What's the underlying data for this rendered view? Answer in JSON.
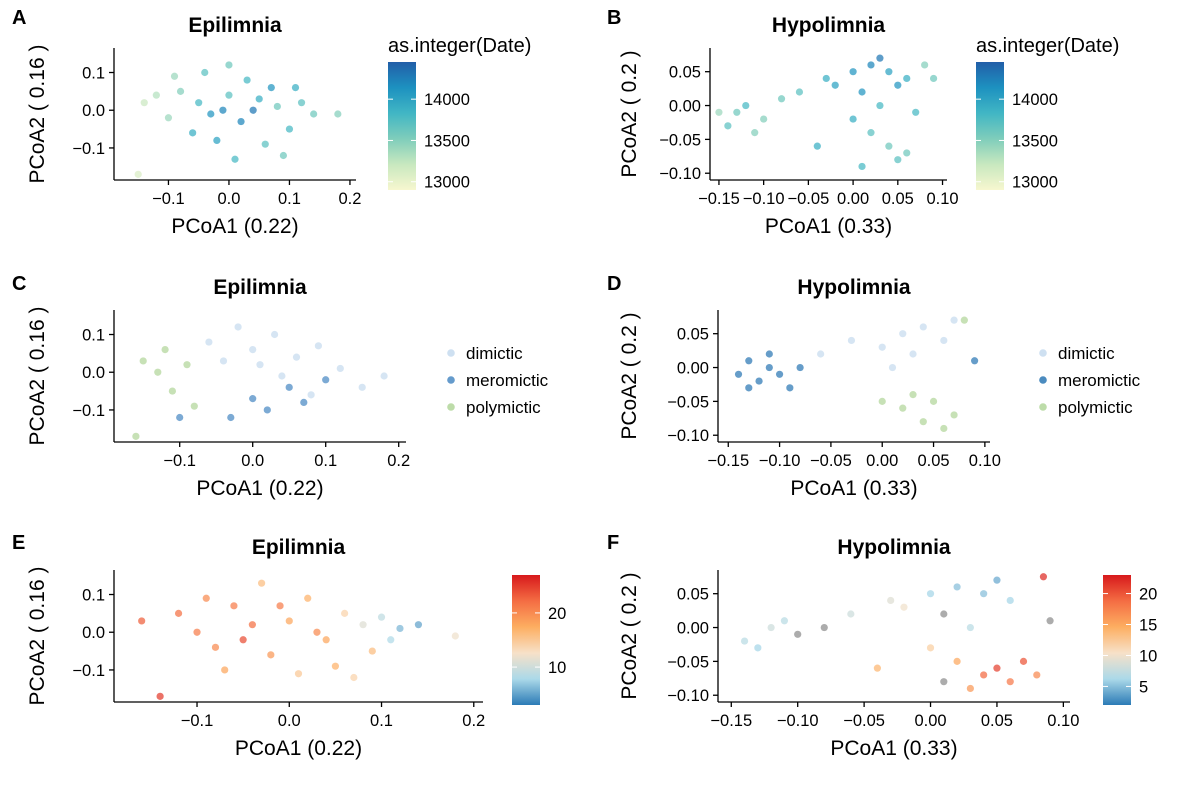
{
  "chart_data": [
    {
      "type": "scatter",
      "panel": "A",
      "title": "Epilimnia",
      "xlabel": "PCoA1 (0.22)",
      "ylabel": "PCoA2 ( 0.16 )",
      "xlim": [
        -0.19,
        0.21
      ],
      "ylim": [
        -0.185,
        0.165
      ],
      "xticks": [
        -0.1,
        0.0,
        0.1,
        0.2
      ],
      "xtick_labels": [
        "−0.1",
        "0.0",
        "0.1",
        "0.2"
      ],
      "yticks": [
        -0.1,
        0.0,
        0.1
      ],
      "ytick_labels": [
        "−0.1",
        "0.0",
        "0.1"
      ],
      "color_by": "continuous",
      "legend": {
        "type": "colorbar",
        "title": "as.integer(Date)",
        "ticks": [
          13000,
          13500,
          14000
        ],
        "tick_labels": [
          "13000",
          "13500",
          "14000"
        ],
        "range": [
          12900,
          14450
        ],
        "colors": [
          "#f7f7cf",
          "#c8e8bf",
          "#7fcdbb",
          "#41b6c4",
          "#1d91c0",
          "#225ea8"
        ]
      },
      "points": [
        [
          -0.05,
          0.02,
          13800
        ],
        [
          -0.03,
          -0.01,
          14100
        ],
        [
          0.0,
          0.04,
          13700
        ],
        [
          0.02,
          -0.03,
          14200
        ],
        [
          0.05,
          0.03,
          13900
        ],
        [
          0.08,
          0.01,
          13600
        ],
        [
          -0.08,
          0.05,
          13500
        ],
        [
          -0.1,
          -0.02,
          13400
        ],
        [
          0.1,
          -0.05,
          13800
        ],
        [
          0.12,
          0.02,
          13700
        ],
        [
          -0.12,
          0.04,
          13300
        ],
        [
          0.03,
          0.08,
          13800
        ],
        [
          -0.02,
          -0.08,
          14000
        ],
        [
          0.06,
          -0.09,
          13700
        ],
        [
          -0.06,
          -0.06,
          13900
        ],
        [
          0.14,
          -0.01,
          13600
        ],
        [
          -0.14,
          0.02,
          13200
        ],
        [
          0.0,
          0.12,
          13600
        ],
        [
          0.18,
          -0.01,
          13500
        ],
        [
          -0.15,
          -0.17,
          13100
        ],
        [
          0.07,
          0.06,
          14100
        ],
        [
          -0.04,
          0.1,
          13700
        ],
        [
          0.09,
          -0.12,
          13600
        ],
        [
          -0.09,
          0.09,
          13400
        ],
        [
          0.01,
          -0.13,
          13800
        ],
        [
          0.04,
          0.0,
          14300
        ],
        [
          -0.01,
          0.0,
          14200
        ],
        [
          0.11,
          0.06,
          13900
        ]
      ]
    },
    {
      "type": "scatter",
      "panel": "B",
      "title": "Hypolimnia",
      "xlabel": "PCoA1 (0.33)",
      "ylabel": "PCoA2 ( 0.2 )",
      "xlim": [
        -0.16,
        0.105
      ],
      "ylim": [
        -0.11,
        0.085
      ],
      "xticks": [
        -0.15,
        -0.1,
        -0.05,
        0.0,
        0.05,
        0.1
      ],
      "xtick_labels": [
        "−0.15",
        "−0.10",
        "−0.05",
        "0.00",
        "0.05",
        "0.10"
      ],
      "yticks": [
        -0.1,
        -0.05,
        0.0,
        0.05
      ],
      "ytick_labels": [
        "−0.10",
        "−0.05",
        "0.00",
        "0.05"
      ],
      "color_by": "continuous",
      "legend": {
        "type": "colorbar",
        "title": "as.integer(Date)",
        "ticks": [
          13000,
          13500,
          14000
        ],
        "tick_labels": [
          "13000",
          "13500",
          "14000"
        ],
        "range": [
          12900,
          14450
        ],
        "colors": [
          "#f7f7cf",
          "#c8e8bf",
          "#7fcdbb",
          "#41b6c4",
          "#1d91c0",
          "#225ea8"
        ]
      },
      "points": [
        [
          -0.13,
          -0.01,
          13600
        ],
        [
          -0.12,
          0.0,
          13800
        ],
        [
          -0.1,
          -0.02,
          13500
        ],
        [
          -0.14,
          -0.03,
          13700
        ],
        [
          -0.08,
          0.01,
          13600
        ],
        [
          -0.06,
          0.02,
          13700
        ],
        [
          -0.03,
          0.04,
          13900
        ],
        [
          0.0,
          0.05,
          14100
        ],
        [
          0.02,
          0.06,
          14200
        ],
        [
          0.04,
          0.05,
          14000
        ],
        [
          0.06,
          0.04,
          13900
        ],
        [
          0.01,
          0.02,
          14100
        ],
        [
          0.03,
          0.0,
          13800
        ],
        [
          0.02,
          -0.04,
          13700
        ],
        [
          0.04,
          -0.06,
          13600
        ],
        [
          0.05,
          -0.08,
          13700
        ],
        [
          0.06,
          -0.07,
          13600
        ],
        [
          0.01,
          -0.09,
          13800
        ],
        [
          -0.02,
          0.03,
          14000
        ],
        [
          0.08,
          0.06,
          13500
        ],
        [
          -0.11,
          -0.04,
          13500
        ],
        [
          0.0,
          -0.02,
          13900
        ],
        [
          0.03,
          0.07,
          14300
        ],
        [
          -0.04,
          -0.06,
          13900
        ],
        [
          0.07,
          -0.01,
          13800
        ],
        [
          0.05,
          0.03,
          14100
        ],
        [
          -0.15,
          -0.01,
          13400
        ],
        [
          0.09,
          0.04,
          13600
        ]
      ]
    },
    {
      "type": "scatter",
      "panel": "C",
      "title": "Epilimnia",
      "xlabel": "PCoA1 (0.22)",
      "ylabel": "PCoA2 ( 0.16 )",
      "xlim": [
        -0.19,
        0.21
      ],
      "ylim": [
        -0.185,
        0.165
      ],
      "xticks": [
        -0.1,
        0.0,
        0.1,
        0.2
      ],
      "xtick_labels": [
        "−0.1",
        "0.0",
        "0.1",
        "0.2"
      ],
      "yticks": [
        -0.1,
        0.0,
        0.1
      ],
      "ytick_labels": [
        "−0.1",
        "0.0",
        "0.1"
      ],
      "color_by": "category",
      "legend": {
        "type": "categorical",
        "title": "",
        "entries": [
          {
            "label": "dimictic",
            "color": "#c6dbef"
          },
          {
            "label": "meromictic",
            "color": "#4a89c3"
          },
          {
            "label": "polymictic",
            "color": "#b2d69a"
          }
        ]
      },
      "points": [
        [
          -0.15,
          0.03,
          "polymictic"
        ],
        [
          -0.13,
          0.0,
          "polymictic"
        ],
        [
          -0.11,
          -0.05,
          "polymictic"
        ],
        [
          -0.09,
          0.02,
          "polymictic"
        ],
        [
          -0.12,
          0.06,
          "polymictic"
        ],
        [
          -0.08,
          -0.09,
          "polymictic"
        ],
        [
          -0.16,
          -0.17,
          "polymictic"
        ],
        [
          -0.1,
          -0.12,
          "meromictic"
        ],
        [
          0.0,
          -0.07,
          "meromictic"
        ],
        [
          0.02,
          -0.1,
          "meromictic"
        ],
        [
          0.05,
          -0.04,
          "meromictic"
        ],
        [
          0.07,
          -0.08,
          "meromictic"
        ],
        [
          0.1,
          -0.02,
          "meromictic"
        ],
        [
          -0.03,
          -0.12,
          "meromictic"
        ],
        [
          -0.06,
          0.08,
          "dimictic"
        ],
        [
          -0.02,
          0.12,
          "dimictic"
        ],
        [
          0.0,
          0.06,
          "dimictic"
        ],
        [
          0.03,
          0.1,
          "dimictic"
        ],
        [
          0.06,
          0.04,
          "dimictic"
        ],
        [
          0.09,
          0.07,
          "dimictic"
        ],
        [
          0.12,
          0.01,
          "dimictic"
        ],
        [
          0.15,
          -0.04,
          "dimictic"
        ],
        [
          0.18,
          -0.01,
          "dimictic"
        ],
        [
          0.01,
          0.02,
          "dimictic"
        ],
        [
          -0.04,
          0.03,
          "dimictic"
        ],
        [
          0.04,
          -0.01,
          "dimictic"
        ],
        [
          0.08,
          -0.06,
          "dimictic"
        ]
      ]
    },
    {
      "type": "scatter",
      "panel": "D",
      "title": "Hypolimnia",
      "xlabel": "PCoA1 (0.33)",
      "ylabel": "PCoA2 ( 0.2 )",
      "xlim": [
        -0.16,
        0.105
      ],
      "ylim": [
        -0.11,
        0.085
      ],
      "xticks": [
        -0.15,
        -0.1,
        -0.05,
        0.0,
        0.05,
        0.1
      ],
      "xtick_labels": [
        "−0.15",
        "−0.10",
        "−0.05",
        "0.00",
        "0.05",
        "0.10"
      ],
      "yticks": [
        -0.1,
        -0.05,
        0.0,
        0.05
      ],
      "ytick_labels": [
        "−0.10",
        "−0.05",
        "0.00",
        "0.05"
      ],
      "color_by": "category",
      "legend": {
        "type": "categorical",
        "title": "",
        "entries": [
          {
            "label": "dimictic",
            "color": "#c6dbef"
          },
          {
            "label": "meromictic",
            "color": "#2b77b4"
          },
          {
            "label": "polymictic",
            "color": "#b2d69a"
          }
        ]
      },
      "points": [
        [
          -0.14,
          -0.01,
          "meromictic"
        ],
        [
          -0.13,
          0.01,
          "meromictic"
        ],
        [
          -0.12,
          -0.02,
          "meromictic"
        ],
        [
          -0.11,
          0.0,
          "meromictic"
        ],
        [
          -0.1,
          -0.01,
          "meromictic"
        ],
        [
          -0.09,
          -0.03,
          "meromictic"
        ],
        [
          -0.13,
          -0.03,
          "meromictic"
        ],
        [
          -0.08,
          0.0,
          "meromictic"
        ],
        [
          -0.11,
          0.02,
          "meromictic"
        ],
        [
          0.09,
          0.01,
          "meromictic"
        ],
        [
          -0.06,
          0.02,
          "dimictic"
        ],
        [
          -0.03,
          0.04,
          "dimictic"
        ],
        [
          0.0,
          0.03,
          "dimictic"
        ],
        [
          0.02,
          0.05,
          "dimictic"
        ],
        [
          0.04,
          0.06,
          "dimictic"
        ],
        [
          0.06,
          0.04,
          "dimictic"
        ],
        [
          0.01,
          0.0,
          "dimictic"
        ],
        [
          0.03,
          0.02,
          "dimictic"
        ],
        [
          0.07,
          0.07,
          "dimictic"
        ],
        [
          0.0,
          -0.05,
          "polymictic"
        ],
        [
          0.02,
          -0.06,
          "polymictic"
        ],
        [
          0.04,
          -0.08,
          "polymictic"
        ],
        [
          0.05,
          -0.05,
          "polymictic"
        ],
        [
          0.06,
          -0.09,
          "polymictic"
        ],
        [
          0.03,
          -0.04,
          "polymictic"
        ],
        [
          0.07,
          -0.07,
          "polymictic"
        ],
        [
          0.08,
          0.07,
          "polymictic"
        ]
      ]
    },
    {
      "type": "scatter",
      "panel": "E",
      "title": "Epilimnia",
      "xlabel": "PCoA1 (0.22)",
      "ylabel": "PCoA2 ( 0.16 )",
      "xlim": [
        -0.19,
        0.21
      ],
      "ylim": [
        -0.185,
        0.165
      ],
      "xticks": [
        -0.1,
        0.0,
        0.1,
        0.2
      ],
      "xtick_labels": [
        "−0.1",
        "0.0",
        "0.1",
        "0.2"
      ],
      "yticks": [
        -0.1,
        0.0,
        0.1
      ],
      "ytick_labels": [
        "−0.1",
        "0.0",
        "0.1"
      ],
      "color_by": "continuous",
      "legend": {
        "type": "colorbar",
        "title": "",
        "ticks": [
          10,
          20
        ],
        "tick_labels": [
          "10",
          "20"
        ],
        "range": [
          3,
          27
        ],
        "colors": [
          "#2c7bb6",
          "#abd9e9",
          "#f7e1c8",
          "#fdae61",
          "#f46d43",
          "#d7191c"
        ]
      },
      "points": [
        [
          -0.16,
          0.03,
          23
        ],
        [
          -0.12,
          0.05,
          22
        ],
        [
          -0.1,
          0.0,
          21
        ],
        [
          -0.08,
          -0.04,
          20
        ],
        [
          -0.06,
          0.07,
          21
        ],
        [
          -0.04,
          0.02,
          22
        ],
        [
          -0.02,
          -0.06,
          19
        ],
        [
          0.0,
          0.03,
          18
        ],
        [
          0.02,
          0.09,
          17
        ],
        [
          0.04,
          -0.02,
          18
        ],
        [
          0.06,
          0.05,
          14
        ],
        [
          0.08,
          0.02,
          11
        ],
        [
          0.1,
          0.04,
          9
        ],
        [
          0.12,
          0.01,
          6
        ],
        [
          0.14,
          0.02,
          5
        ],
        [
          0.18,
          -0.01,
          12
        ],
        [
          -0.14,
          -0.17,
          25
        ],
        [
          -0.03,
          0.13,
          16
        ],
        [
          0.05,
          -0.09,
          17
        ],
        [
          -0.07,
          -0.1,
          18
        ],
        [
          0.09,
          -0.05,
          16
        ],
        [
          0.03,
          0.0,
          20
        ],
        [
          -0.05,
          -0.02,
          24
        ],
        [
          0.01,
          -0.11,
          15
        ],
        [
          0.07,
          -0.12,
          14
        ],
        [
          -0.09,
          0.09,
          20
        ],
        [
          0.11,
          -0.02,
          8
        ],
        [
          -0.01,
          0.07,
          21
        ]
      ]
    },
    {
      "type": "scatter",
      "panel": "F",
      "title": "Hypolimnia",
      "xlabel": "PCoA1 (0.33)",
      "ylabel": "PCoA2 ( 0.2 )",
      "xlim": [
        -0.16,
        0.105
      ],
      "ylim": [
        -0.11,
        0.085
      ],
      "xticks": [
        -0.15,
        -0.1,
        -0.05,
        0.0,
        0.05,
        0.1
      ],
      "xtick_labels": [
        "−0.15",
        "−0.10",
        "−0.05",
        "0.00",
        "0.05",
        "0.10"
      ],
      "yticks": [
        -0.1,
        -0.05,
        0.0,
        0.05
      ],
      "ytick_labels": [
        "−0.10",
        "−0.05",
        "0.00",
        "0.05"
      ],
      "color_by": "continuous",
      "legend": {
        "type": "colorbar",
        "title": "",
        "ticks": [
          5,
          10,
          15,
          20
        ],
        "tick_labels": [
          "5",
          "10",
          "15",
          "20"
        ],
        "range": [
          2,
          23
        ],
        "colors": [
          "#2c7bb6",
          "#abd9e9",
          "#f7e1c8",
          "#fdae61",
          "#f46d43",
          "#d7191c"
        ]
      },
      "na_color": "#8c8c8c",
      "points": [
        [
          -0.14,
          -0.02,
          7
        ],
        [
          -0.12,
          0.0,
          8
        ],
        [
          -0.1,
          -0.01,
          null
        ],
        [
          -0.08,
          0.0,
          null
        ],
        [
          -0.13,
          -0.03,
          6
        ],
        [
          -0.11,
          0.01,
          7
        ],
        [
          -0.06,
          0.02,
          8
        ],
        [
          -0.03,
          0.04,
          9
        ],
        [
          0.0,
          0.05,
          6
        ],
        [
          0.02,
          0.06,
          5
        ],
        [
          0.04,
          0.05,
          5
        ],
        [
          0.06,
          0.04,
          6
        ],
        [
          0.01,
          0.02,
          null
        ],
        [
          0.03,
          0.0,
          7
        ],
        [
          0.0,
          -0.03,
          12
        ],
        [
          0.02,
          -0.05,
          15
        ],
        [
          0.04,
          -0.07,
          19
        ],
        [
          0.05,
          -0.06,
          21
        ],
        [
          0.06,
          -0.08,
          18
        ],
        [
          0.03,
          -0.09,
          16
        ],
        [
          0.07,
          -0.05,
          20
        ],
        [
          0.085,
          0.075,
          22
        ],
        [
          0.09,
          0.01,
          null
        ],
        [
          -0.04,
          -0.06,
          14
        ],
        [
          0.05,
          0.07,
          4
        ],
        [
          0.01,
          -0.08,
          null
        ],
        [
          -0.02,
          0.03,
          10
        ],
        [
          0.08,
          -0.07,
          17
        ]
      ]
    }
  ]
}
